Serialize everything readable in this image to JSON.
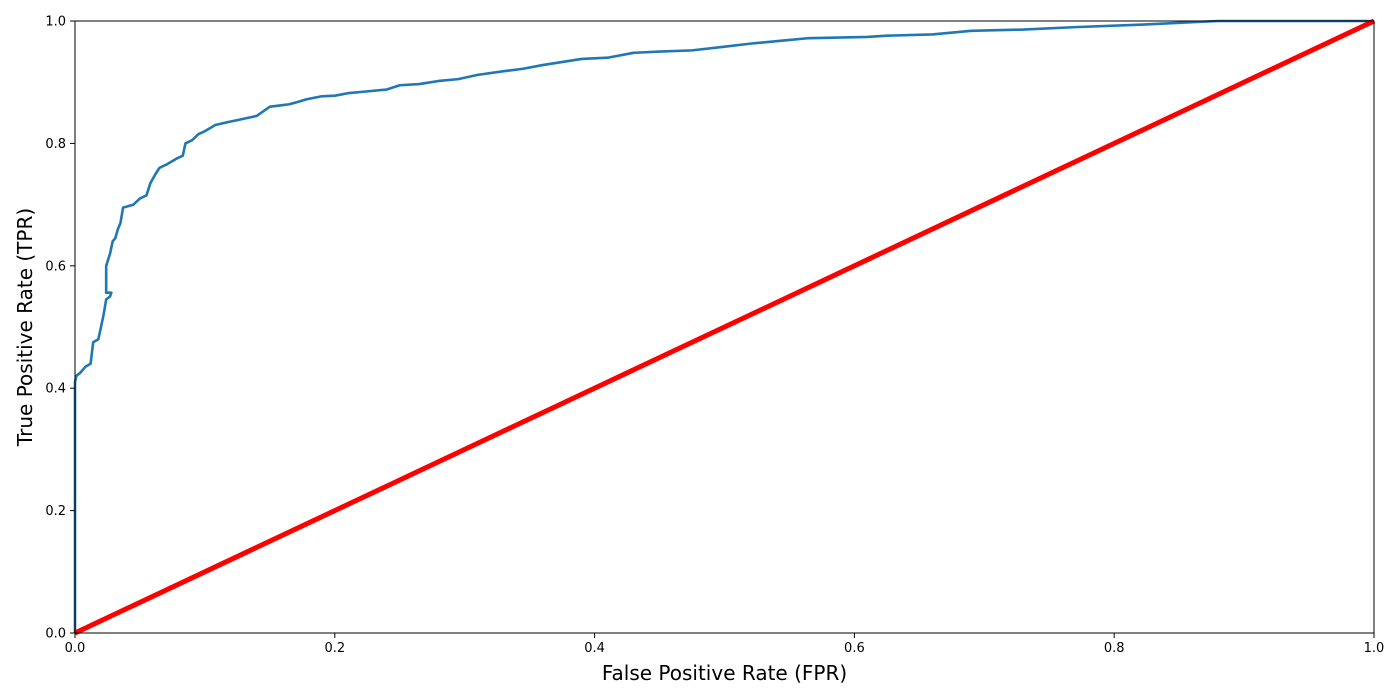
{
  "chart_data": {
    "type": "line",
    "title": "",
    "xlabel": "False Positive Rate (FPR)",
    "ylabel": "True Positive Rate (TPR)",
    "xlim": [
      0,
      1
    ],
    "ylim": [
      0,
      1
    ],
    "grid": false,
    "x_ticks": [
      "0.0",
      "0.2",
      "0.4",
      "0.6",
      "0.8",
      "1.0"
    ],
    "y_ticks": [
      "0.0",
      "0.2",
      "0.4",
      "0.6",
      "0.8",
      "1.0"
    ],
    "series": [
      {
        "color": "#1f77b4",
        "line_width": "thin",
        "points": [
          [
            0.0,
            0.0
          ],
          [
            0.0,
            0.41
          ],
          [
            0.001,
            0.42
          ],
          [
            0.004,
            0.425
          ],
          [
            0.006,
            0.43
          ],
          [
            0.008,
            0.435
          ],
          [
            0.012,
            0.44
          ],
          [
            0.014,
            0.475
          ],
          [
            0.018,
            0.48
          ],
          [
            0.02,
            0.5
          ],
          [
            0.022,
            0.52
          ],
          [
            0.024,
            0.545
          ],
          [
            0.027,
            0.55
          ],
          [
            0.028,
            0.556
          ],
          [
            0.024,
            0.556
          ],
          [
            0.024,
            0.6
          ],
          [
            0.027,
            0.62
          ],
          [
            0.029,
            0.64
          ],
          [
            0.031,
            0.645
          ],
          [
            0.033,
            0.66
          ],
          [
            0.035,
            0.67
          ],
          [
            0.037,
            0.695
          ],
          [
            0.045,
            0.7
          ],
          [
            0.05,
            0.71
          ],
          [
            0.055,
            0.715
          ],
          [
            0.058,
            0.735
          ],
          [
            0.062,
            0.75
          ],
          [
            0.065,
            0.76
          ],
          [
            0.07,
            0.765
          ],
          [
            0.078,
            0.775
          ],
          [
            0.083,
            0.78
          ],
          [
            0.085,
            0.8
          ],
          [
            0.09,
            0.805
          ],
          [
            0.095,
            0.815
          ],
          [
            0.1,
            0.82
          ],
          [
            0.108,
            0.83
          ],
          [
            0.118,
            0.835
          ],
          [
            0.125,
            0.838
          ],
          [
            0.14,
            0.845
          ],
          [
            0.15,
            0.86
          ],
          [
            0.158,
            0.862
          ],
          [
            0.165,
            0.864
          ],
          [
            0.172,
            0.868
          ],
          [
            0.178,
            0.872
          ],
          [
            0.19,
            0.877
          ],
          [
            0.2,
            0.878
          ],
          [
            0.21,
            0.882
          ],
          [
            0.225,
            0.885
          ],
          [
            0.24,
            0.888
          ],
          [
            0.25,
            0.895
          ],
          [
            0.265,
            0.897
          ],
          [
            0.28,
            0.902
          ],
          [
            0.295,
            0.905
          ],
          [
            0.31,
            0.912
          ],
          [
            0.33,
            0.918
          ],
          [
            0.345,
            0.922
          ],
          [
            0.36,
            0.928
          ],
          [
            0.39,
            0.938
          ],
          [
            0.41,
            0.94
          ],
          [
            0.43,
            0.948
          ],
          [
            0.45,
            0.95
          ],
          [
            0.475,
            0.952
          ],
          [
            0.5,
            0.958
          ],
          [
            0.52,
            0.963
          ],
          [
            0.545,
            0.968
          ],
          [
            0.565,
            0.972
          ],
          [
            0.61,
            0.974
          ],
          [
            0.625,
            0.976
          ],
          [
            0.66,
            0.978
          ],
          [
            0.69,
            0.984
          ],
          [
            0.73,
            0.986
          ],
          [
            0.77,
            0.99
          ],
          [
            0.82,
            0.994
          ],
          [
            0.86,
            0.998
          ],
          [
            0.88,
            1.0
          ],
          [
            1.0,
            1.0
          ]
        ]
      },
      {
        "color": "#ff0000",
        "line_width": "thick",
        "points": [
          [
            0,
            0
          ],
          [
            1,
            1
          ]
        ]
      }
    ]
  }
}
